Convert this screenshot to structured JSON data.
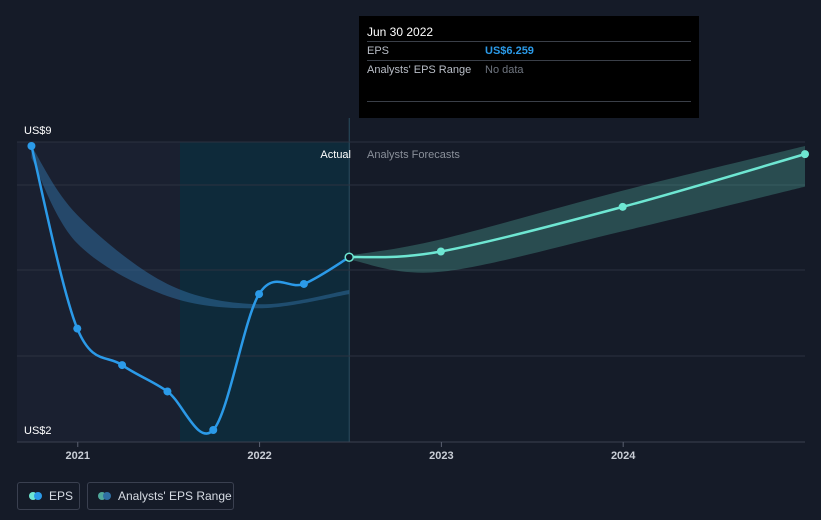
{
  "tooltip": {
    "date": "Jun 30 2022",
    "rows": [
      {
        "label": "EPS",
        "value": "US$6.259"
      },
      {
        "label": "Analysts' EPS Range",
        "value": "No data"
      }
    ]
  },
  "labels": {
    "actual": "Actual",
    "forecast": "Analysts Forecasts"
  },
  "legend": [
    {
      "label": "EPS"
    },
    {
      "label": "Analysts' EPS Range"
    }
  ],
  "colors": {
    "eps": "#2b9ae8",
    "forecast": "#6ee6d2",
    "range_hist": "#2f6fa3",
    "range_forecast": "#4fa89b",
    "background": "#151b28",
    "actual_band": "#0e2a3a"
  },
  "chart_data": {
    "type": "line",
    "y_axis_labels": [
      "US$9",
      "US$2"
    ],
    "ylim": [
      2,
      9
    ],
    "x_ticks": [
      "2021",
      "2022",
      "2023",
      "2024"
    ],
    "x_tick_values": [
      "2021-01-01",
      "2022-01-01",
      "2023-01-01",
      "2024-01-01"
    ],
    "xlim": [
      "2020-09-01",
      "2024-12-31"
    ],
    "grid": true,
    "highlight_point": {
      "x": "2022-06-30",
      "y": 6.259
    },
    "series": [
      {
        "name": "EPS",
        "points": [
          {
            "x": "2020-09-30",
            "y": 9.0
          },
          {
            "x": "2020-12-31",
            "y": 4.5
          },
          {
            "x": "2021-03-31",
            "y": 3.6
          },
          {
            "x": "2021-06-30",
            "y": 2.95
          },
          {
            "x": "2021-09-30",
            "y": 2.0
          },
          {
            "x": "2021-12-31",
            "y": 5.35
          },
          {
            "x": "2022-03-31",
            "y": 5.6
          },
          {
            "x": "2022-06-30",
            "y": 6.259
          }
        ]
      },
      {
        "name": "Analysts Forecasts",
        "points": [
          {
            "x": "2022-06-30",
            "y": 6.259
          },
          {
            "x": "2022-12-31",
            "y": 6.4
          },
          {
            "x": "2023-12-31",
            "y": 7.5
          },
          {
            "x": "2024-12-31",
            "y": 8.8
          }
        ]
      }
    ],
    "ranges": [
      {
        "name": "Analysts' EPS Range (historical)",
        "points": [
          {
            "x": "2020-09-30",
            "low": 8.7,
            "high": 9.0
          },
          {
            "x": "2020-12-31",
            "low": 6.6,
            "high": 7.3
          },
          {
            "x": "2021-06-30",
            "low": 5.3,
            "high": 5.6
          },
          {
            "x": "2021-12-31",
            "low": 5.0,
            "high": 5.1
          },
          {
            "x": "2022-06-30",
            "low": 5.35,
            "high": 5.45
          }
        ]
      },
      {
        "name": "Analysts' EPS Range (forecast)",
        "points": [
          {
            "x": "2022-06-30",
            "low": 6.2,
            "high": 6.3
          },
          {
            "x": "2022-12-31",
            "low": 5.9,
            "high": 6.7
          },
          {
            "x": "2023-12-31",
            "low": 6.9,
            "high": 7.9
          },
          {
            "x": "2024-12-31",
            "low": 8.0,
            "high": 9.0
          }
        ]
      }
    ]
  }
}
